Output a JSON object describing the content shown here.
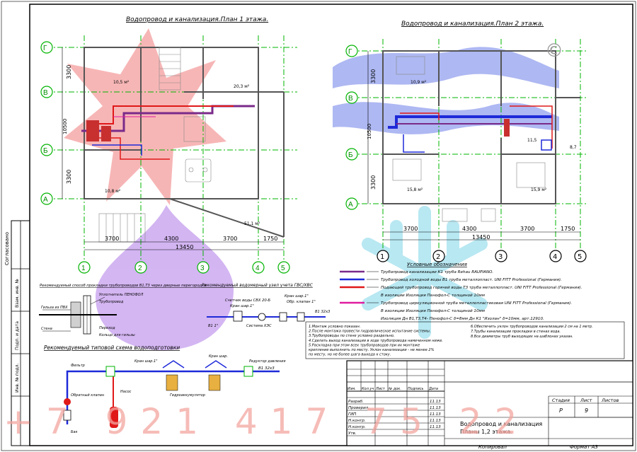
{
  "plan1": {
    "title": "Водопровод и канализация.План 1 этажа.",
    "axes_rows": [
      "Г",
      "В",
      "Б",
      "А"
    ],
    "axes_cols": [
      "1",
      "2",
      "3",
      "4",
      "5"
    ],
    "dims_vertical": [
      "3300",
      "10500",
      "3300"
    ],
    "dims_horizontal": [
      "3700",
      "4300",
      "3700",
      "1750"
    ],
    "dim_total": "13450",
    "room_areas": [
      "10,5 м²",
      "20,3 м²",
      "10,8 м²",
      "51,1 м²"
    ]
  },
  "plan2": {
    "title": "Водопровод и канализация.План 2 этажа.",
    "axes_rows": [
      "Г",
      "В",
      "Б",
      "А"
    ],
    "axes_cols": [
      "1",
      "2",
      "3",
      "4",
      "5"
    ],
    "dims_vertical": [
      "3300",
      "10500",
      "3300"
    ],
    "dims_horizontal": [
      "3700",
      "4300",
      "3700",
      "1750"
    ],
    "dim_total": "13450",
    "room_areas": [
      "10,9 м²",
      "11,5",
      "15,8 м²",
      "15,9 м²",
      "8,7"
    ]
  },
  "legend": {
    "title": "Условные обозначения",
    "items": [
      {
        "text": "Трубопровод канализации К1 труба Rehau RAUPIANO.",
        "color": "#7a2a8a"
      },
      {
        "text": "Трубопровод холодной воды В1 труба металлопласт. UNI FITT Professional (Германия).",
        "color": "#1e2ad8"
      },
      {
        "text": "Подающий трубопровод горячей воды Т3 труба металлопласт. UNI FITT Professional (Германия).",
        "color": "#e01818"
      },
      {
        "text": "В изоляции Изоляция Пенофол-С толщиной 10мм",
        "color": "#000000"
      },
      {
        "text": "Трубопровод циркуляционной труба металлопластиковая UNI FITT Professional (Германия).",
        "color": "#e01ca0"
      },
      {
        "text": "В изоляции Изоляция Пенофол-С толщиной 10мм",
        "color": "#000000"
      },
      {
        "text": "Изоляция Дн В1,Т3,Т4- Пенофол-С δ=8мм Дн К1 \"Изолан\" δ=10мм, арт.12910.",
        "color": "#000000"
      }
    ]
  },
  "notes_left": [
    "1.Монтаж условно показан.",
    "2.После монтажа провести гидравлическое испытание системы.",
    "3.Трубопроводы по стене условно раздельно.",
    "4.Сделать выход канализации в ходе трубопровода намеченном ниже.",
    "5.Раскладка при этом всех трубопроводов при их монтаже",
    "крепление выполнить по месту. Уклон канализации - не менее 2%",
    "по месту, но не более шага выхода к стоку."
  ],
  "notes_right": [
    "6.Обеспечить уклон трубопроводов канализации 2 см на 1 метр.",
    "7.Трубы канализации прокладки в стенах вода.",
    "8.Все диаметры труб выходящих на шаблонах указан."
  ],
  "sections": {
    "left_caption": "Рекомендуемый способ прокладки трубопроводов В1,Т3 через дверные перегородки",
    "right_caption": "Рекомендуемый водомерный узел учета ГВС/ХВС",
    "scheme_caption": "Рекомендуемый типовой схема водоподготовки",
    "meter_labels": [
      "Счетчик воды СВХ 20-Б",
      "Кран шар.1\"",
      "Обр. клапан 1\"",
      "Кран шар.1\"",
      "Кран шар.1\"",
      "Система ХЭС",
      "В1 32х3",
      "В1 1\""
    ],
    "crossing_labels": [
      "Гильза из ПВХ",
      "Уплотнитель ПЕНОФОЛ",
      "Трубопровод",
      "Стена",
      "Переход",
      "Кольцо для гильзы"
    ],
    "scheme_labels": [
      "Кран шар.1\"",
      "Фильтр",
      "Редуктор давления",
      "Насос",
      "Бак",
      "Гидроаккумулятор",
      "Кран шар.",
      "Обратный клапан",
      "В1 32х3"
    ]
  },
  "title_block": {
    "header_cols": [
      "Изм.",
      "Кол.уч",
      "Лист",
      "№ док.",
      "Подпись",
      "Дата"
    ],
    "rows": [
      {
        "role": "Разраб.",
        "date": "11.13"
      },
      {
        "role": "Проверил",
        "date": "11.13"
      },
      {
        "role": "ГИП",
        "date": "11.13"
      },
      {
        "role": "Н.контр.",
        "date": "11.13"
      },
      {
        "role": "Н.контр.",
        "date": "11.13"
      },
      {
        "role": "Утв.",
        "date": ""
      }
    ],
    "title_line1": "Водопровод и канализация",
    "title_line2": "Планы 1,2 этажа.",
    "stage_label": "Стадия",
    "sheet_label": "Лист",
    "sheets_label": "Листов",
    "stage_value": "Р",
    "sheet_value": "9",
    "sheets_value": "",
    "copy_label": "Копировал",
    "format_label": "Формат А3"
  },
  "left_strip": [
    "Согласовано",
    "Взам. инв. №",
    "Подп. и дата",
    "Инв. № подл."
  ],
  "watermark": {
    "phone": "+7 921 417 75 22",
    "color": "#f3a6a0",
    "copyright_glyph": "©"
  }
}
